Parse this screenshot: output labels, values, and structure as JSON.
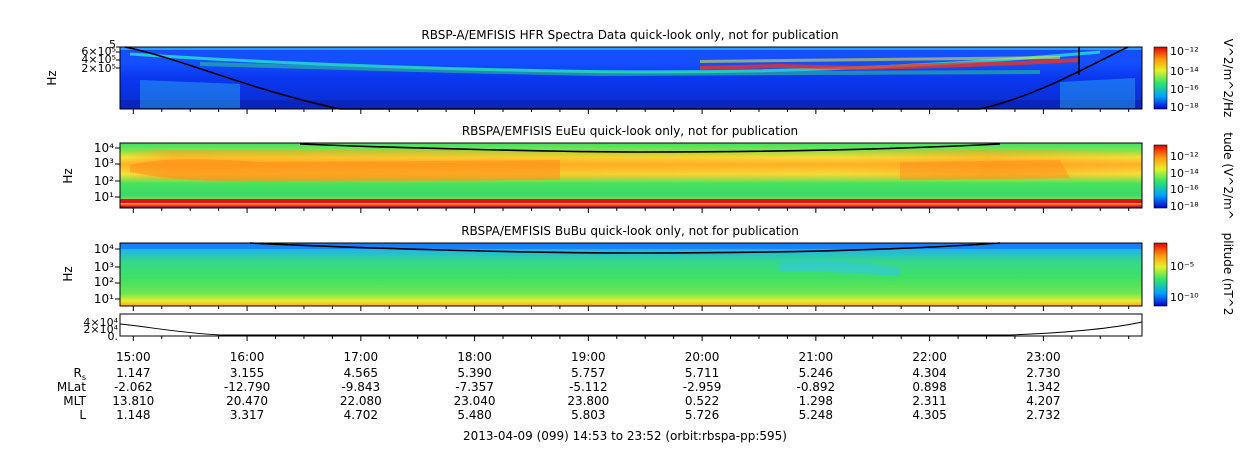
{
  "panels": [
    {
      "title": "RBSP-A/EMFISIS  HFR Spectra Data quick-look only, not for publication",
      "ylabel": "Hz",
      "yticks": [
        "5",
        "6×10⁵",
        "4×10⁵",
        "2×10⁵"
      ],
      "cbar_label": "V^2/m^2/Hz",
      "cbar_ticks": [
        "10⁻¹²",
        "10⁻¹⁴",
        "10⁻¹⁶",
        "10⁻¹⁸"
      ]
    },
    {
      "title": "RBSPA/EMFISIS  EuEu quick-look only, not for publication",
      "ylabel": "Hz",
      "yticks": [
        "10⁴",
        "10³",
        "10²",
        "10¹"
      ],
      "cbar_label": "tude (V^2/m^",
      "cbar_ticks": [
        "10⁻¹²",
        "10⁻¹⁴",
        "10⁻¹⁶",
        "10⁻¹⁸"
      ]
    },
    {
      "title": "RBSPA/EMFISIS  BuBu quick-look only, not for publication",
      "ylabel": "Hz",
      "yticks": [
        "10⁴",
        "10³",
        "10²",
        "10¹"
      ],
      "cbar_label": "plitude (nT^2",
      "cbar_ticks": [
        "10⁻⁵",
        "10⁻¹⁰"
      ]
    },
    {
      "title": "",
      "ylabel": "",
      "yticks": [
        "4×10⁴",
        "2×10⁴",
        "0."
      ],
      "cbar_label": "",
      "cbar_ticks": []
    }
  ],
  "chart_data": {
    "type": "heatmap",
    "x_tick_labels": [
      "15:00",
      "16:00",
      "17:00",
      "18:00",
      "19:00",
      "20:00",
      "21:00",
      "22:00",
      "23:00"
    ],
    "x_range_hours": [
      14.883,
      23.867
    ],
    "ephemeris": {
      "labels": [
        "R",
        "MLat",
        "MLT",
        "L"
      ],
      "R_subscript": "s",
      "rows": [
        [
          "1.147",
          "3.155",
          "4.565",
          "5.390",
          "5.757",
          "5.711",
          "5.246",
          "4.304",
          "2.730"
        ],
        [
          "-2.062",
          "-12.790",
          "-9.843",
          "-7.357",
          "-5.112",
          "-2.959",
          "-0.892",
          "0.898",
          "1.342"
        ],
        [
          "13.810",
          "20.470",
          "22.080",
          "23.040",
          "23.800",
          "0.522",
          "1.298",
          "2.311",
          "4.207"
        ],
        [
          "1.148",
          "3.317",
          "4.702",
          "5.480",
          "5.803",
          "5.726",
          "5.248",
          "4.305",
          "2.732"
        ]
      ]
    },
    "colors": {
      "blue": "#0a3cff",
      "green": "#3fe066",
      "yellow": "#f7ee30",
      "orange": "#ffa21a",
      "red": "#ee1b1b",
      "black": "#000000"
    }
  },
  "footer": "2013-04-09 (099) 14:53 to 23:52 (orbit:rbspa-pp:595)"
}
